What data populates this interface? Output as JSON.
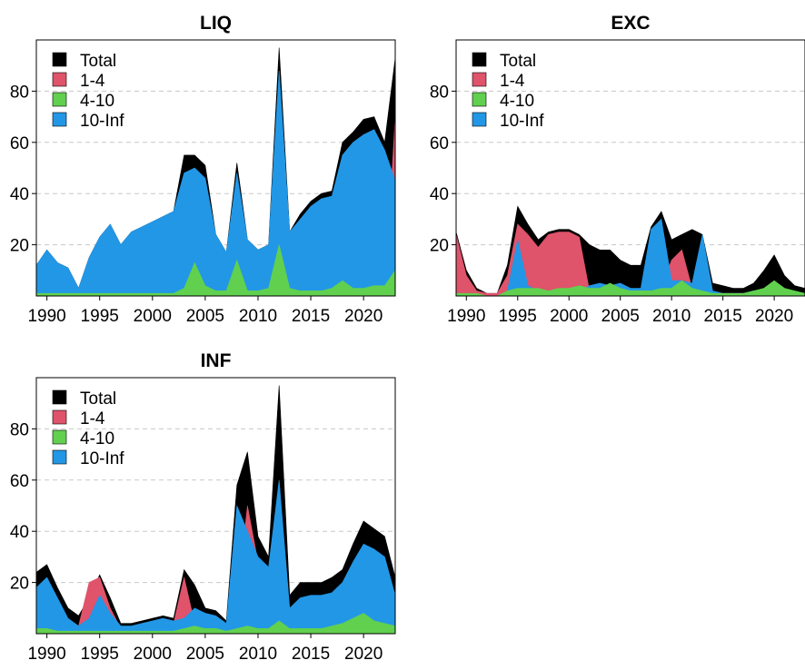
{
  "colors": {
    "total": "#000000",
    "band_1_4": "#DF536B",
    "band_4_10": "#61D04F",
    "band_10_inf": "#2297E6",
    "grid": "#C8C8C8",
    "axis": "#000000"
  },
  "x_ticks": [
    1990,
    1995,
    2000,
    2005,
    2010,
    2015,
    2020
  ],
  "y_ticks": [
    20,
    40,
    60,
    80
  ],
  "legend": [
    "Total",
    "1-4",
    "4-10",
    "10-Inf"
  ],
  "chart_data": [
    {
      "type": "area",
      "title": "LIQ",
      "xlabel": "",
      "ylabel": "",
      "xlim": [
        1989,
        2023
      ],
      "ylim": [
        0,
        100
      ],
      "grid": true,
      "legend_position": "top-left",
      "x": [
        1989,
        1990,
        1991,
        1992,
        1993,
        1994,
        1995,
        1996,
        1997,
        1998,
        1999,
        2000,
        2001,
        2002,
        2003,
        2004,
        2005,
        2006,
        2007,
        2008,
        2009,
        2010,
        2011,
        2012,
        2013,
        2014,
        2015,
        2016,
        2017,
        2018,
        2019,
        2020,
        2021,
        2022,
        2023
      ],
      "series": [
        {
          "name": "Total",
          "values": [
            12,
            18,
            13,
            11,
            3,
            15,
            23,
            28,
            20,
            25,
            27,
            29,
            31,
            33,
            55,
            55,
            51,
            24,
            17,
            52,
            22,
            18,
            20,
            97,
            25,
            32,
            37,
            40,
            41,
            60,
            64,
            69,
            70,
            60,
            93
          ]
        },
        {
          "name": "1-4",
          "values": [
            0,
            0,
            0,
            0,
            0,
            0,
            0,
            0,
            0,
            0,
            0,
            0,
            0,
            0,
            0,
            1,
            1,
            0,
            0,
            1,
            0,
            0,
            0,
            1,
            0,
            0,
            0,
            0,
            0,
            0,
            0,
            0,
            0,
            0,
            70
          ]
        },
        {
          "name": "4-10",
          "values": [
            1,
            1,
            1,
            1,
            1,
            1,
            1,
            1,
            1,
            1,
            1,
            1,
            1,
            1,
            3,
            13,
            4,
            2,
            2,
            14,
            2,
            2,
            3,
            20,
            3,
            2,
            2,
            2,
            3,
            6,
            3,
            3,
            4,
            4,
            10
          ]
        },
        {
          "name": "10-Inf",
          "values": [
            12,
            18,
            13,
            11,
            3,
            15,
            23,
            28,
            20,
            25,
            27,
            29,
            31,
            33,
            48,
            50,
            46,
            24,
            17,
            48,
            22,
            18,
            20,
            88,
            25,
            30,
            35,
            38,
            39,
            55,
            60,
            63,
            65,
            57,
            45
          ]
        }
      ]
    },
    {
      "type": "area",
      "title": "EXC",
      "xlabel": "",
      "ylabel": "",
      "xlim": [
        1989,
        2023
      ],
      "ylim": [
        0,
        100
      ],
      "grid": true,
      "legend_position": "top-left",
      "x": [
        1989,
        1990,
        1991,
        1992,
        1993,
        1994,
        1995,
        1996,
        1997,
        1998,
        1999,
        2000,
        2001,
        2002,
        2003,
        2004,
        2005,
        2006,
        2007,
        2008,
        2009,
        2010,
        2011,
        2012,
        2013,
        2014,
        2015,
        2016,
        2017,
        2018,
        2019,
        2020,
        2021,
        2022,
        2023
      ],
      "series": [
        {
          "name": "Total",
          "values": [
            25,
            10,
            3,
            1,
            1,
            12,
            35,
            28,
            22,
            25,
            26,
            26,
            24,
            20,
            18,
            18,
            14,
            12,
            12,
            27,
            33,
            22,
            24,
            26,
            24,
            5,
            4,
            3,
            3,
            5,
            10,
            16,
            8,
            4,
            3
          ]
        },
        {
          "name": "1-4",
          "values": [
            24,
            8,
            2,
            1,
            1,
            8,
            28,
            24,
            19,
            24,
            25,
            25,
            23,
            2,
            2,
            2,
            2,
            2,
            1,
            3,
            4,
            14,
            18,
            3,
            2,
            1,
            1,
            1,
            1,
            1,
            1,
            2,
            1,
            1,
            1
          ]
        },
        {
          "name": "4-10",
          "values": [
            1,
            1,
            1,
            0,
            0,
            2,
            3,
            3,
            3,
            2,
            3,
            3,
            4,
            3,
            3,
            5,
            3,
            2,
            2,
            2,
            3,
            3,
            6,
            3,
            2,
            1,
            1,
            1,
            1,
            2,
            3,
            6,
            3,
            2,
            1
          ]
        },
        {
          "name": "10-Inf",
          "values": [
            0,
            0,
            0,
            0,
            0,
            2,
            22,
            4,
            2,
            2,
            2,
            2,
            2,
            4,
            5,
            4,
            5,
            3,
            3,
            26,
            30,
            6,
            6,
            5,
            24,
            2,
            1,
            1,
            1,
            2,
            2,
            3,
            2,
            1,
            1
          ]
        }
      ]
    },
    {
      "type": "area",
      "title": "INF",
      "xlabel": "",
      "ylabel": "",
      "xlim": [
        1989,
        2023
      ],
      "ylim": [
        0,
        100
      ],
      "grid": true,
      "legend_position": "top-left",
      "x": [
        1989,
        1990,
        1991,
        1992,
        1993,
        1994,
        1995,
        1996,
        1997,
        1998,
        1999,
        2000,
        2001,
        2002,
        2003,
        2004,
        2005,
        2006,
        2007,
        2008,
        2009,
        2010,
        2011,
        2012,
        2013,
        2014,
        2015,
        2016,
        2017,
        2018,
        2019,
        2020,
        2021,
        2022,
        2023
      ],
      "series": [
        {
          "name": "Total",
          "values": [
            24,
            27,
            18,
            10,
            7,
            14,
            23,
            14,
            4,
            4,
            5,
            6,
            7,
            6,
            25,
            19,
            10,
            9,
            5,
            58,
            71,
            38,
            30,
            97,
            15,
            20,
            20,
            20,
            22,
            25,
            35,
            44,
            41,
            38,
            22
          ]
        },
        {
          "name": "1-4",
          "values": [
            16,
            20,
            10,
            5,
            3,
            20,
            22,
            10,
            2,
            2,
            2,
            2,
            3,
            4,
            22,
            4,
            4,
            3,
            2,
            12,
            50,
            28,
            22,
            48,
            5,
            8,
            12,
            12,
            12,
            12,
            10,
            9,
            10,
            12,
            14
          ]
        },
        {
          "name": "4-10",
          "values": [
            2,
            2,
            1,
            1,
            1,
            1,
            1,
            1,
            1,
            1,
            1,
            1,
            1,
            1,
            2,
            3,
            2,
            2,
            1,
            2,
            3,
            2,
            2,
            5,
            2,
            2,
            2,
            2,
            3,
            4,
            6,
            8,
            5,
            4,
            3
          ]
        },
        {
          "name": "10-Inf",
          "values": [
            18,
            22,
            14,
            6,
            3,
            6,
            15,
            8,
            3,
            3,
            4,
            5,
            6,
            5,
            6,
            10,
            8,
            7,
            4,
            50,
            40,
            30,
            26,
            60,
            10,
            14,
            15,
            15,
            16,
            20,
            28,
            35,
            33,
            30,
            15
          ]
        }
      ]
    }
  ]
}
